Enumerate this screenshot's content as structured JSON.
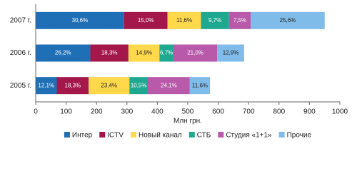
{
  "chart_data": {
    "type": "stacked-barh",
    "categories": [
      "2007 г.",
      "2006 г.",
      "2005 г."
    ],
    "series": [
      {
        "name": "Интер",
        "color": "#1f6fb6",
        "values": [
          290.7,
          179.5,
          69.3
        ],
        "shares": [
          "30,6%",
          "26,2%",
          "12,1%"
        ]
      },
      {
        "name": "ICTV",
        "color": "#a3174b",
        "values": [
          142.5,
          125.4,
          104.9
        ],
        "shares": [
          "15,0%",
          "18,3%",
          "18,3%"
        ]
      },
      {
        "name": "Новый канал",
        "color": "#ffd84c",
        "values": [
          110.2,
          102.1,
          134.1
        ],
        "shares": [
          "11,6%",
          "14,9%",
          "23,4%"
        ]
      },
      {
        "name": "СТБ",
        "color": "#1ea88f",
        "values": [
          92.2,
          45.9,
          60.2
        ],
        "shares": [
          "9,7%",
          "6,7%",
          "10,5%"
        ]
      },
      {
        "name": "Студия «1+1»",
        "color": "#b85aa9",
        "values": [
          71.3,
          143.9,
          138.1
        ],
        "shares": [
          "7,5%",
          "21,0%",
          "24,1%"
        ]
      },
      {
        "name": "Прочие",
        "color": "#80bce9",
        "values": [
          243.2,
          88.4,
          66.5
        ],
        "shares": [
          "25,6%",
          "12,9%",
          "11,6%"
        ]
      }
    ],
    "xlabel": "Млн грн.",
    "xlim": [
      0,
      1000
    ],
    "xticks": [
      0,
      100,
      200,
      300,
      400,
      500,
      600,
      700,
      800,
      900,
      1000
    ],
    "grid": false,
    "legend": "bottom"
  }
}
